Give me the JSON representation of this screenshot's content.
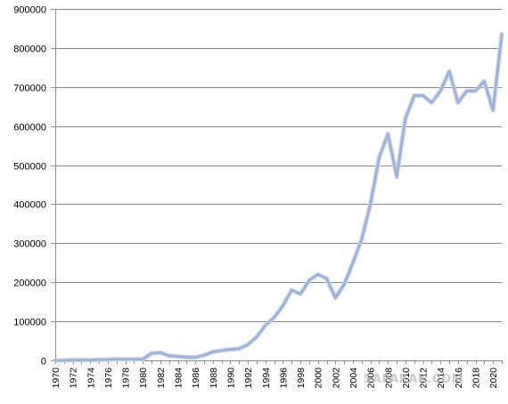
{
  "chart_data": {
    "type": "line",
    "title": "",
    "xlabel": "",
    "ylabel": "",
    "xlim": [
      1970,
      2021
    ],
    "ylim": [
      0,
      900000
    ],
    "yticks": [
      0,
      100000,
      200000,
      300000,
      400000,
      500000,
      600000,
      700000,
      800000,
      900000
    ],
    "ytick_labels": [
      "0",
      "100000",
      "200000",
      "300000",
      "400000",
      "500000",
      "600000",
      "700000",
      "800000",
      "900000"
    ],
    "xtick_labels": [
      "1970",
      "1972",
      "1974",
      "1976",
      "1978",
      "1980",
      "1982",
      "1984",
      "1986",
      "1988",
      "1990",
      "1992",
      "1994",
      "1996",
      "1998",
      "2000",
      "2002",
      "2004",
      "2006",
      "2008",
      "2010",
      "2012",
      "2014",
      "2016",
      "2018",
      "2020"
    ],
    "grid": "horizontal",
    "legend": "none",
    "line_color": "#9db2d8",
    "series": [
      {
        "x": [
          1970,
          1971,
          1972,
          1973,
          1974,
          1975,
          1976,
          1977,
          1978,
          1979,
          1980,
          1981,
          1982,
          1983,
          1984,
          1985,
          1986,
          1987,
          1988,
          1989,
          1990,
          1991,
          1992,
          1993,
          1994,
          1995,
          1996,
          1997,
          1998,
          1999,
          2000,
          2001,
          2002,
          2003,
          2004,
          2005,
          2006,
          2007,
          2008,
          2009,
          2010,
          2011,
          2012,
          2013,
          2014,
          2015,
          2016,
          2017,
          2018,
          2019,
          2020,
          2021
        ],
        "values": [
          0,
          0,
          1000,
          1000,
          1000,
          2000,
          2000,
          3000,
          3000,
          3000,
          3000,
          18000,
          20000,
          12000,
          10000,
          8000,
          8000,
          13000,
          22000,
          25000,
          28000,
          30000,
          40000,
          60000,
          90000,
          110000,
          140000,
          180000,
          170000,
          205000,
          220000,
          210000,
          160000,
          195000,
          250000,
          310000,
          400000,
          520000,
          580000,
          470000,
          620000,
          678000,
          678000,
          660000,
          690000,
          740000,
          660000,
          690000,
          690000,
          715000,
          640000,
          835000
        ]
      }
    ]
  },
  "watermark": {
    "text": "SAPARAK.COM"
  }
}
